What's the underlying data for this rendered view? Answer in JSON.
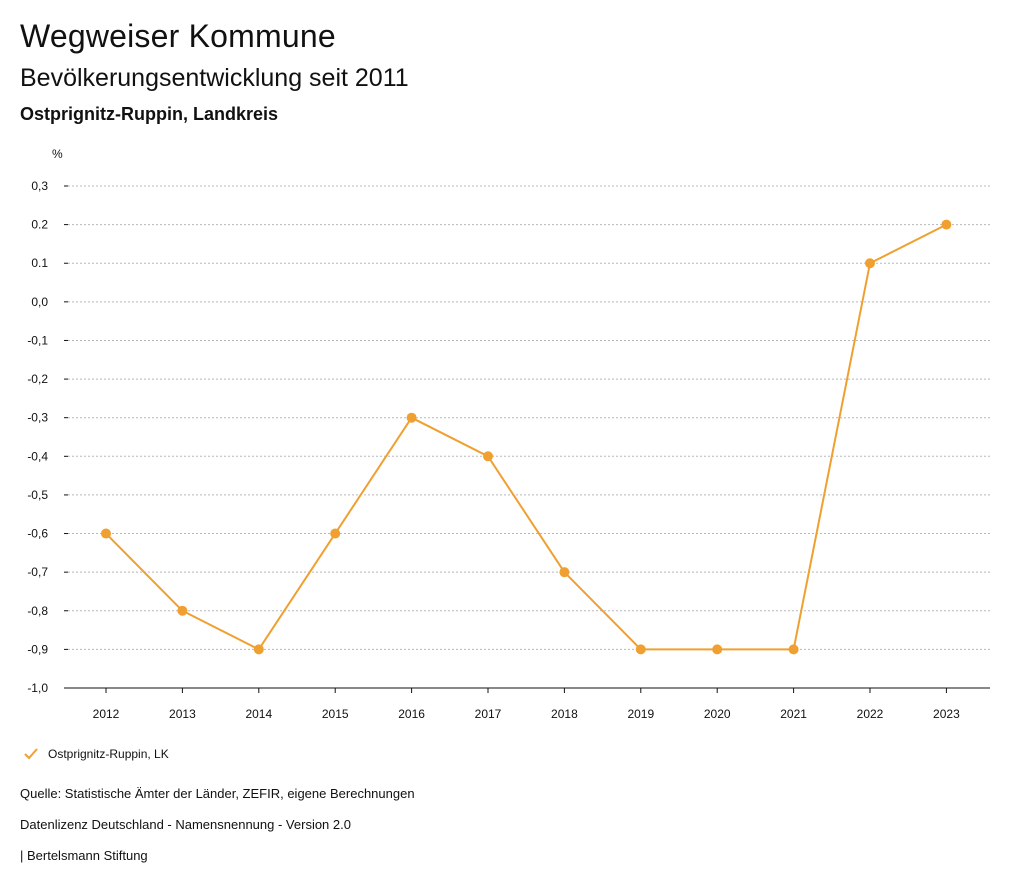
{
  "header": {
    "title": "Wegweiser Kommune",
    "subtitle": "Bevölkerungsentwicklung seit 2011",
    "region": "Ostprignitz-Ruppin, Landkreis"
  },
  "legend": {
    "label": "Ostprignitz-Ruppin, LK",
    "icon": "check-icon"
  },
  "footer": {
    "source": "Quelle: Statistische Ämter der Länder, ZEFIR, eigene Berechnungen",
    "license": "Datenlizenz Deutschland - Namensnennung - Version 2.0",
    "publisher": "| Bertelsmann Stiftung"
  },
  "colors": {
    "series": "#f0a030",
    "grid": "#b8b8b8",
    "axis": "#111111"
  },
  "chart_data": {
    "type": "line",
    "title": "Bevölkerungsentwicklung seit 2011",
    "ylabel": "%",
    "xlabel": "",
    "categories": [
      "2012",
      "2013",
      "2014",
      "2015",
      "2016",
      "2017",
      "2018",
      "2019",
      "2020",
      "2021",
      "2022",
      "2023"
    ],
    "series": [
      {
        "name": "Ostprignitz-Ruppin, LK",
        "values": [
          -0.6,
          -0.8,
          -0.9,
          -0.6,
          -0.3,
          -0.4,
          -0.7,
          -0.9,
          -0.9,
          -0.9,
          0.1,
          0.2
        ]
      }
    ],
    "ylim": [
      -1.0,
      0.3
    ],
    "yticks": [
      0.3,
      0.2,
      0.1,
      0.0,
      -0.1,
      -0.2,
      -0.3,
      -0.4,
      -0.5,
      -0.6,
      -0.7,
      -0.8,
      -0.9,
      -1.0
    ],
    "ytick_labels": [
      "0,3",
      "0.2",
      "0.1",
      "0,0",
      "-0,1",
      "-0,2",
      "-0,3",
      "-0,4",
      "-0,5",
      "-0,6",
      "-0,7",
      "-0,8",
      "-0,9",
      "-1,0"
    ],
    "grid": true,
    "legend_position": "bottom-left"
  }
}
